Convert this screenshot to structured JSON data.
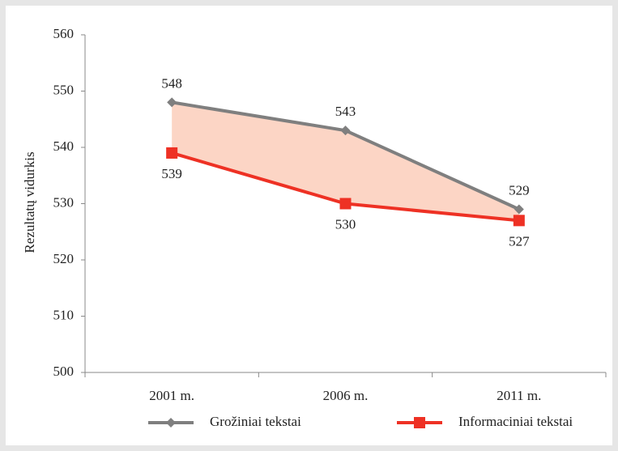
{
  "chart_data": {
    "type": "line",
    "y_label": "Rezultatų vidurkis",
    "categories": [
      "2001 m.",
      "2006 m.",
      "2011 m."
    ],
    "series": [
      {
        "name": "Grožiniai tekstai",
        "color": "#7f7f7f",
        "marker": "diamond",
        "values": [
          548,
          543,
          529
        ]
      },
      {
        "name": "Informaciniai tekstai",
        "color": "#ee3124",
        "marker": "square",
        "values": [
          539,
          530,
          527
        ]
      }
    ],
    "fill_between_color": "#fcd5c5",
    "ylim": [
      500,
      560
    ],
    "yticks": [
      500,
      510,
      520,
      530,
      540,
      550,
      560
    ],
    "legend": "bottom"
  }
}
